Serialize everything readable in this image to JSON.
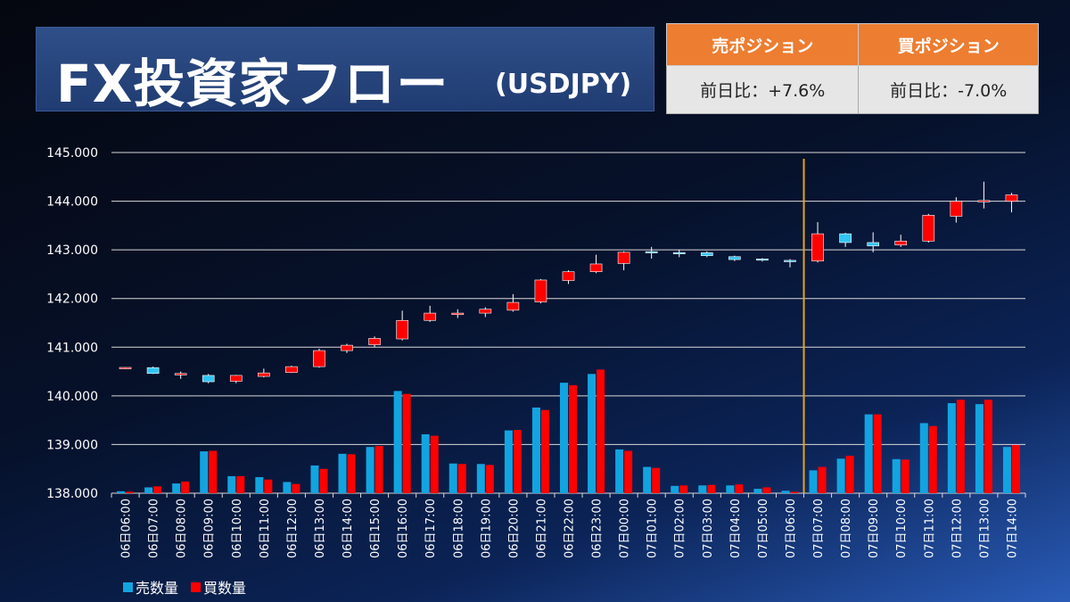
{
  "header": {
    "title": "FX投資家フロー",
    "subtitle": "(USDJPY)"
  },
  "positions": {
    "sell": {
      "label": "売ポジション",
      "change": "前日比：+7.6%"
    },
    "buy": {
      "label": "買ポジション",
      "change": "前日比：-7.0%"
    },
    "header_color": "#ed7d31"
  },
  "chart_data": {
    "type": "bar",
    "title": "",
    "xlabel": "",
    "ylabel": "",
    "ylim": [
      138.0,
      145.0
    ],
    "yticks": [
      "138.000",
      "139.000",
      "140.000",
      "141.000",
      "142.000",
      "143.000",
      "144.000",
      "145.000"
    ],
    "grid": true,
    "legend_position": "bottom-left",
    "categories": [
      "06日06:00",
      "06日07:00",
      "06日08:00",
      "06日09:00",
      "06日10:00",
      "06日11:00",
      "06日12:00",
      "06日13:00",
      "06日14:00",
      "06日15:00",
      "06日16:00",
      "06日17:00",
      "06日18:00",
      "06日19:00",
      "06日20:00",
      "06日21:00",
      "06日22:00",
      "06日23:00",
      "07日00:00",
      "07日01:00",
      "07日02:00",
      "07日03:00",
      "07日04:00",
      "07日05:00",
      "07日06:00",
      "07日07:00",
      "07日08:00",
      "07日09:00",
      "07日10:00",
      "07日11:00",
      "07日12:00",
      "07日13:00",
      "07日14:00"
    ],
    "divider_after_category": "07日06:00",
    "divider_color": "#e8a317",
    "series": [
      {
        "name": "売数量",
        "type": "bar",
        "color": "#12a4e0",
        "values": [
          138.04,
          138.12,
          138.2,
          138.86,
          138.35,
          138.33,
          138.23,
          138.57,
          138.81,
          138.95,
          140.1,
          139.21,
          138.61,
          138.6,
          139.29,
          139.76,
          140.27,
          140.45,
          138.9,
          138.54,
          138.15,
          138.16,
          138.16,
          138.09,
          138.05,
          138.47,
          138.71,
          139.62,
          138.7,
          139.44,
          139.85,
          139.83,
          138.95
        ]
      },
      {
        "name": "買数量",
        "type": "bar",
        "color": "#ff0000",
        "values": [
          138.03,
          138.14,
          138.24,
          138.87,
          138.35,
          138.28,
          138.19,
          138.5,
          138.8,
          138.97,
          140.04,
          139.18,
          138.6,
          138.58,
          139.3,
          139.71,
          140.22,
          140.54,
          138.87,
          138.52,
          138.16,
          138.17,
          138.18,
          138.12,
          138.03,
          138.54,
          138.77,
          139.62,
          138.69,
          139.38,
          139.92,
          139.92,
          138.99
        ]
      },
      {
        "name": "USDJPY",
        "type": "candlestick",
        "up_color": "#ff0000",
        "down_color": "#33c4f2",
        "ohlc": [
          [
            140.57,
            140.59,
            140.55,
            140.57
          ],
          [
            140.58,
            140.6,
            140.45,
            140.46
          ],
          [
            140.43,
            140.5,
            140.35,
            140.46
          ],
          [
            140.42,
            140.45,
            140.26,
            140.29
          ],
          [
            140.3,
            140.43,
            140.26,
            140.42
          ],
          [
            140.4,
            140.56,
            140.38,
            140.47
          ],
          [
            140.48,
            140.62,
            140.47,
            140.6
          ],
          [
            140.6,
            140.97,
            140.58,
            140.93
          ],
          [
            140.93,
            141.07,
            140.88,
            141.04
          ],
          [
            141.05,
            141.22,
            141.0,
            141.18
          ],
          [
            141.17,
            141.75,
            141.14,
            141.55
          ],
          [
            141.55,
            141.85,
            141.52,
            141.7
          ],
          [
            141.67,
            141.78,
            141.6,
            141.7
          ],
          [
            141.7,
            141.82,
            141.62,
            141.78
          ],
          [
            141.76,
            142.09,
            141.73,
            141.92
          ],
          [
            141.93,
            142.4,
            141.9,
            142.38
          ],
          [
            142.37,
            142.58,
            142.3,
            142.55
          ],
          [
            142.55,
            142.9,
            142.52,
            142.71
          ],
          [
            142.72,
            142.97,
            142.58,
            142.95
          ],
          [
            142.95,
            143.06,
            142.82,
            142.93
          ],
          [
            142.93,
            143.0,
            142.85,
            142.92
          ],
          [
            142.94,
            142.97,
            142.85,
            142.88
          ],
          [
            142.86,
            142.88,
            142.77,
            142.8
          ],
          [
            142.8,
            142.83,
            142.76,
            142.79
          ],
          [
            142.77,
            142.81,
            142.64,
            142.75
          ],
          [
            142.77,
            143.57,
            142.74,
            143.33
          ],
          [
            143.33,
            143.35,
            143.06,
            143.15
          ],
          [
            143.15,
            143.36,
            142.95,
            143.08
          ],
          [
            143.1,
            143.31,
            143.06,
            143.18
          ],
          [
            143.18,
            143.74,
            143.15,
            143.71
          ],
          [
            143.69,
            144.08,
            143.56,
            144.0
          ],
          [
            143.99,
            144.4,
            143.85,
            144.0
          ],
          [
            144.0,
            144.17,
            143.77,
            144.13
          ]
        ]
      }
    ]
  }
}
